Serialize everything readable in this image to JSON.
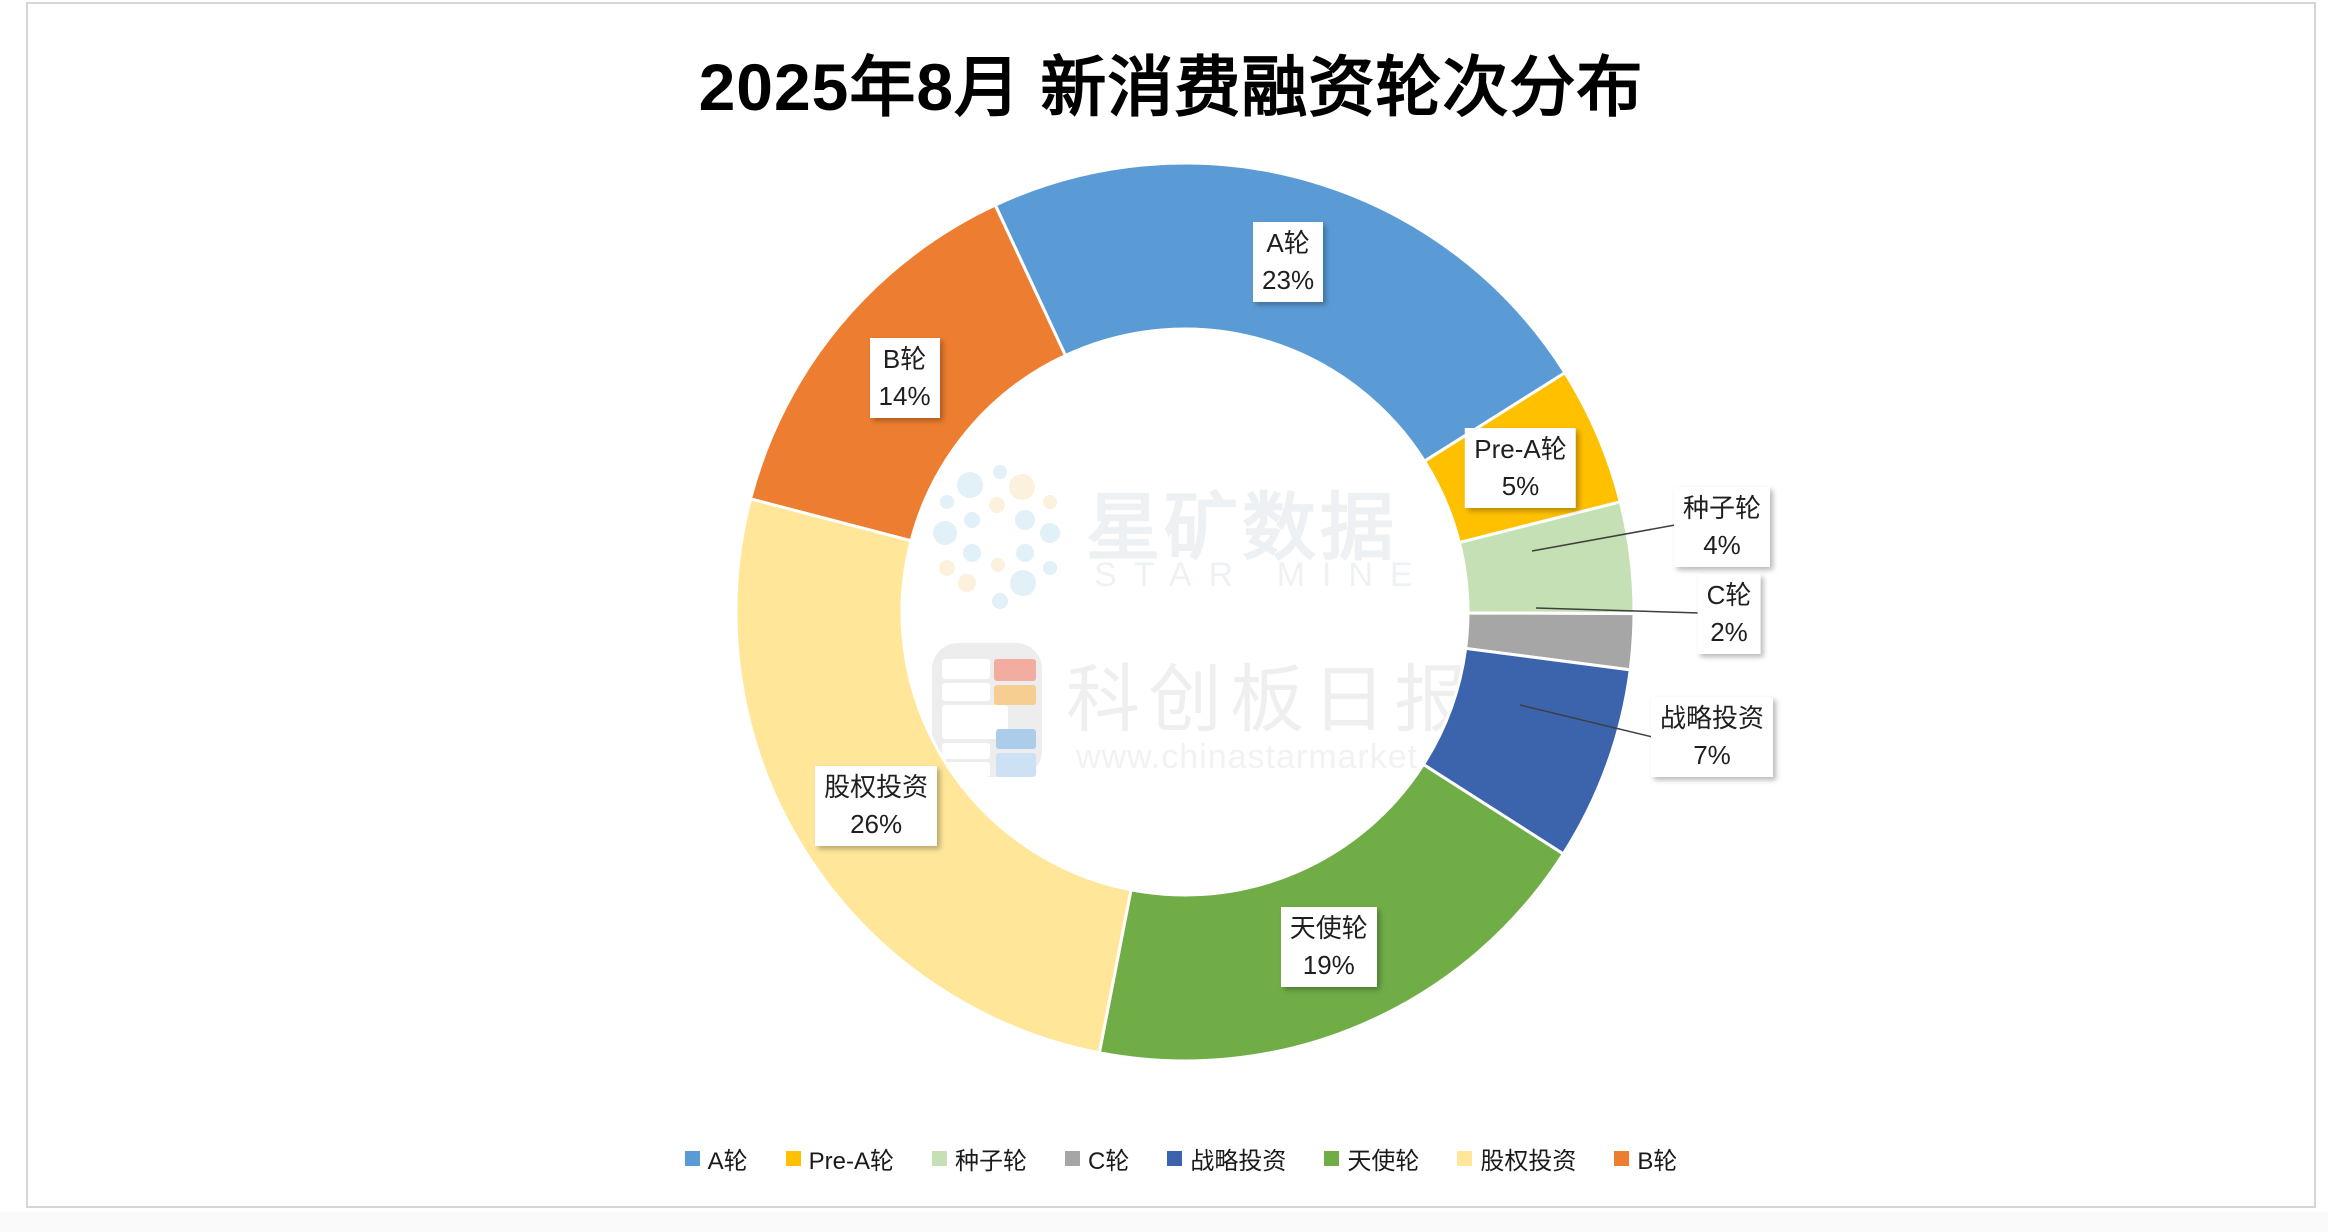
{
  "title": "2025年8月 新消费融资轮次分布",
  "chart_data": {
    "type": "pie",
    "subtype": "donut",
    "title": "2025年8月 新消费融资轮次分布",
    "unit": "%",
    "start_angle_deg": -25,
    "hole_ratio": 0.63,
    "direction": "clockwise",
    "legend_position": "bottom",
    "categories": [
      "A轮",
      "Pre-A轮",
      "种子轮",
      "C轮",
      "战略投资",
      "天使轮",
      "股权投资",
      "B轮"
    ],
    "values": [
      23,
      5,
      4,
      2,
      7,
      19,
      26,
      14
    ],
    "slices": [
      {
        "name": "A轮",
        "value": 23,
        "pct_label": "23%",
        "color": "#5B9BD5",
        "label_placement": "inside"
      },
      {
        "name": "Pre-A轮",
        "value": 5,
        "pct_label": "5%",
        "color": "#FFC000",
        "label_placement": "inside"
      },
      {
        "name": "种子轮",
        "value": 4,
        "pct_label": "4%",
        "color": "#C5E0B4",
        "label_placement": "outside"
      },
      {
        "name": "C轮",
        "value": 2,
        "pct_label": "2%",
        "color": "#A6A6A6",
        "label_placement": "outside"
      },
      {
        "name": "战略投资",
        "value": 7,
        "pct_label": "7%",
        "color": "#3B64AD",
        "label_placement": "outside"
      },
      {
        "name": "天使轮",
        "value": 19,
        "pct_label": "19%",
        "color": "#70AD47",
        "label_placement": "inside"
      },
      {
        "name": "股权投资",
        "value": 26,
        "pct_label": "26%",
        "color": "#FFE699",
        "label_placement": "inside"
      },
      {
        "name": "B轮",
        "value": 14,
        "pct_label": "14%",
        "color": "#ED7D31",
        "label_placement": "inside"
      }
    ]
  },
  "watermarks": {
    "starmine": {
      "cn": "星矿数据",
      "en": "STAR MINE",
      "dot_colors": {
        "blue": "#E2F0F8",
        "orange": "#FCF1DC"
      }
    },
    "kechuang": {
      "cn": "科创板日报",
      "url": "www.chinastarmarket.cn"
    }
  }
}
